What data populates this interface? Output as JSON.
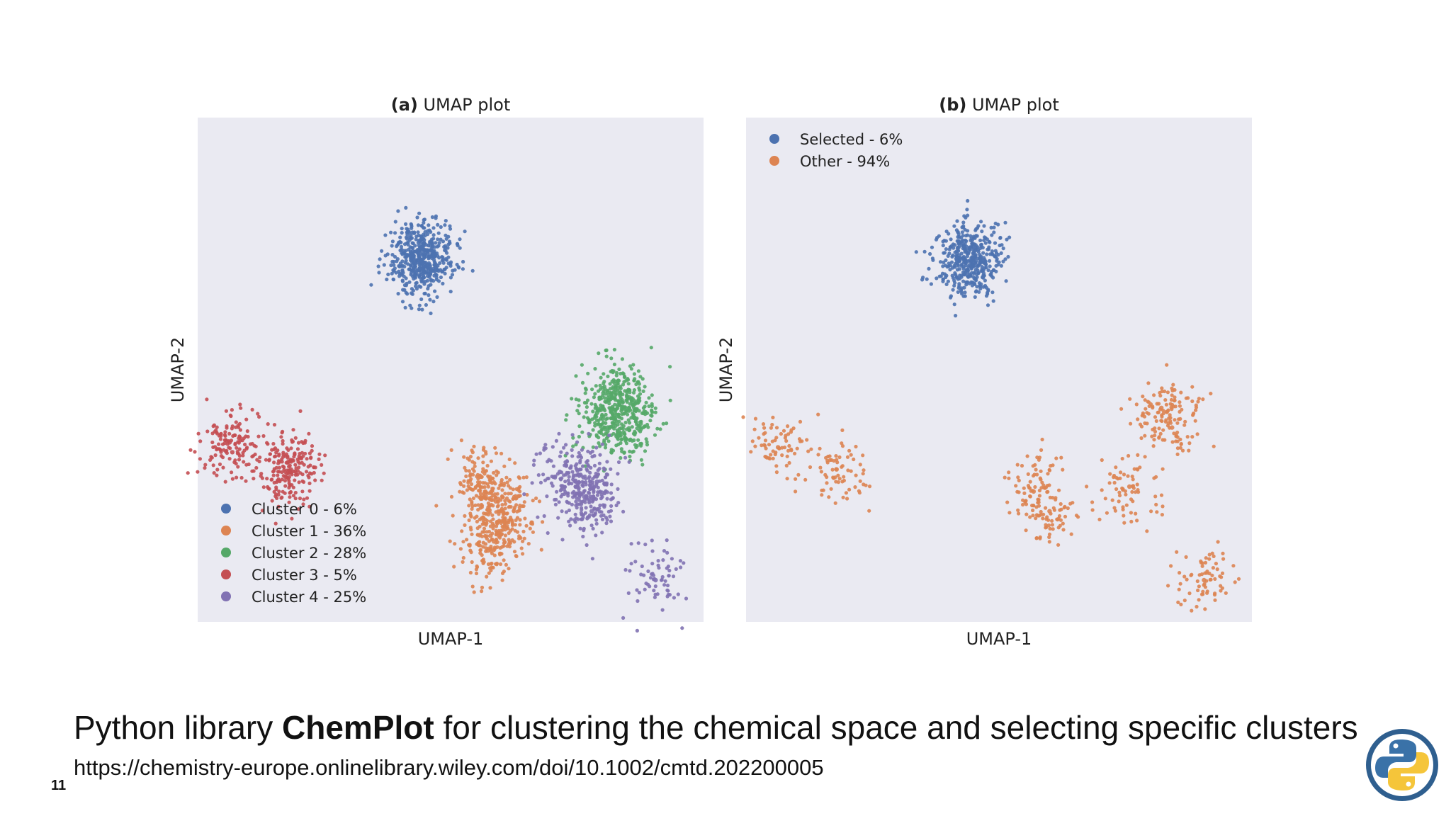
{
  "chart_data": [
    {
      "type": "scatter",
      "title_prefix": "(a)",
      "title": "UMAP plot",
      "xlabel": "UMAP-1",
      "ylabel": "UMAP-2",
      "grid": false,
      "legend_position": "bottom-left",
      "series": [
        {
          "name": "Cluster 0 - 6%",
          "color": "#4c72b0",
          "x": [
            1.2,
            1.6,
            1.4,
            1.0,
            1.8,
            1.3,
            1.5
          ],
          "y": [
            6.2,
            6.6,
            6.0,
            6.4,
            6.3,
            5.8,
            6.9
          ]
        },
        {
          "name": "Cluster 1 - 36%",
          "color": "#dd8452",
          "x": [
            3.8,
            4.4,
            4.0,
            3.6,
            4.2,
            3.9,
            4.5
          ],
          "y": [
            -3.2,
            -4.0,
            -5.0,
            -2.6,
            -3.6,
            -5.6,
            -4.4
          ]
        },
        {
          "name": "Cluster 2 - 28%",
          "color": "#55a868",
          "x": [
            8.0,
            8.6,
            9.2,
            8.4,
            9.0,
            8.8,
            9.4
          ],
          "y": [
            0.0,
            0.6,
            0.2,
            -0.6,
            -0.8,
            1.0,
            -0.2
          ]
        },
        {
          "name": "Cluster 3 - 5%",
          "color": "#c44e52",
          "x": [
            -5.8,
            -5.7,
            -3.6,
            -3.5,
            -3.7
          ],
          "y": [
            -1.2,
            -1.6,
            -2.0,
            -2.3,
            -2.6
          ]
        },
        {
          "name": "Cluster 4 - 25%",
          "color": "#8172b3",
          "x": [
            6.6,
            7.2,
            7.6,
            8.0,
            7.8,
            10.2
          ],
          "y": [
            -2.4,
            -3.0,
            -3.4,
            -2.8,
            -4.0,
            -6.8
          ]
        }
      ]
    },
    {
      "type": "scatter",
      "title_prefix": "(b)",
      "title": "UMAP plot",
      "xlabel": "UMAP-1",
      "ylabel": "UMAP-2",
      "grid": false,
      "legend_position": "top-left",
      "series": [
        {
          "name": "Selected - 6%",
          "color": "#4c72b0",
          "x": [
            1.2,
            1.6,
            1.4,
            1.0,
            1.8,
            1.3
          ],
          "y": [
            6.2,
            6.6,
            6.0,
            6.4,
            6.3,
            5.8
          ]
        },
        {
          "name": "Other - 94%",
          "color": "#dd8452",
          "x": [
            3.8,
            4.4,
            8.6,
            9.0,
            7.4,
            -5.8,
            -3.6,
            10.2
          ],
          "y": [
            -3.2,
            -4.0,
            0.2,
            -0.6,
            -3.0,
            -1.4,
            -2.3,
            -6.8
          ]
        }
      ]
    }
  ],
  "caption": {
    "prefix": "Python library ",
    "bold": "ChemPlot",
    "suffix": " for clustering the chemical space and selecting specific clusters"
  },
  "url": "https://chemistry-europe.onlinelibrary.wiley.com/doi/10.1002/cmtd.202200005",
  "page_number": "11",
  "logo_icon": "python-logo-icon",
  "colors": {
    "plot_background": "#eaeaf2"
  }
}
